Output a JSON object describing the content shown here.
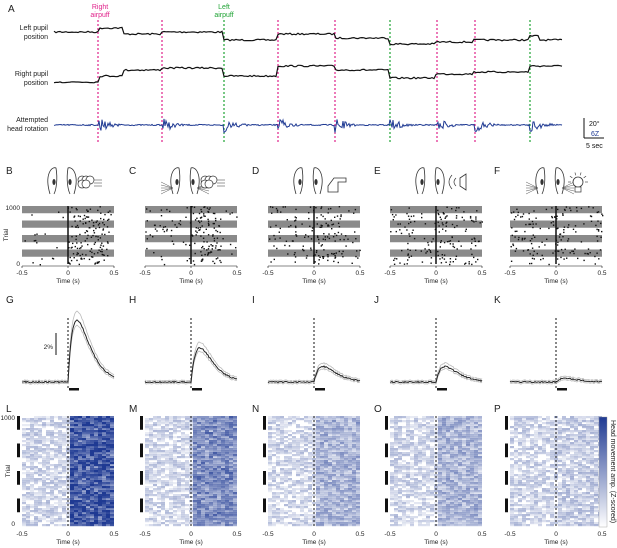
{
  "panel_a": {
    "letter": "A",
    "rows": [
      {
        "label": "Left pupil position"
      },
      {
        "label": "Right pupil position"
      },
      {
        "label": "Attempted head rotation"
      }
    ],
    "stim_labels": {
      "right": "Right airpuff",
      "left": "Left airpuff"
    },
    "stim_colors": {
      "right": "#e0218a",
      "left": "#1fa334"
    },
    "trace_colors": {
      "pupil": "#111111",
      "head": "#1f3a93"
    },
    "stim_sequence": [
      "right",
      "right",
      "left",
      "right",
      "right",
      "left",
      "right",
      "right",
      "left"
    ],
    "scale": {
      "deg": "20°",
      "z": "6Z",
      "time": "5 sec"
    }
  },
  "stim_panels": [
    {
      "letter": "B",
      "stimulus": "right airpuff",
      "response": "strong"
    },
    {
      "letter": "C",
      "stimulus": "airpuff to whiskers",
      "response": "medium"
    },
    {
      "letter": "D",
      "stimulus": "touch",
      "response": "weak"
    },
    {
      "letter": "E",
      "stimulus": "sound",
      "response": "weak"
    },
    {
      "letter": "F",
      "stimulus": "light",
      "response": "none"
    }
  ],
  "row_g": {
    "letters": [
      "G",
      "H",
      "I",
      "J",
      "K"
    ],
    "scalebar": "2%"
  },
  "row_l": {
    "letters": [
      "L",
      "M",
      "N",
      "O",
      "P"
    ],
    "colorbar_label": "Head movement amp. (Z-scored)",
    "color": "#1f3a93"
  },
  "axes": {
    "raster_ylabel": "Trial",
    "heat_ylabel": "Trial",
    "xlabel": "Time (s)",
    "yticks": [
      "1000",
      "0"
    ],
    "xticks": [
      "-0.5",
      "0",
      "0.5"
    ]
  }
}
